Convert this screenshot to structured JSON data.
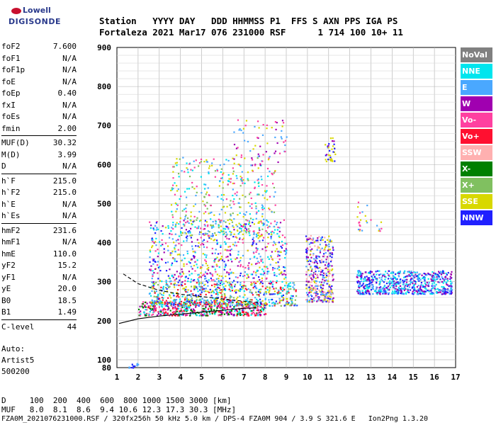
{
  "logo": {
    "line1": "Lowell",
    "line2": "DIGISONDE"
  },
  "header": {
    "labels": "Station   YYYY DAY   DDD HHMMSS P1  FFS S AXN PPS IGA PS",
    "values": "Fortaleza 2021 Mar17 076 231000 RSF      1 714 100 10+ 11"
  },
  "params": {
    "group1": [
      [
        "foF2",
        "7.600"
      ],
      [
        "foF1",
        "N/A"
      ],
      [
        "foF1p",
        "N/A"
      ],
      [
        "foE",
        "N/A"
      ],
      [
        "foEp",
        "0.40"
      ],
      [
        "fxI",
        "N/A"
      ],
      [
        "foEs",
        "N/A"
      ],
      [
        "fmin",
        "2.00"
      ]
    ],
    "group2": [
      [
        "MUF(D)",
        "30.32"
      ],
      [
        "M(D)",
        "3.99"
      ],
      [
        "D",
        "N/A"
      ]
    ],
    "group3": [
      [
        "h`F",
        "215.0"
      ],
      [
        "h`F2",
        "215.0"
      ],
      [
        "h`E",
        "N/A"
      ],
      [
        "h`Es",
        "N/A"
      ]
    ],
    "group4": [
      [
        "hmF2",
        "231.6"
      ],
      [
        "hmF1",
        "N/A"
      ],
      [
        "hmE",
        "110.0"
      ],
      [
        "yF2",
        "15.2"
      ],
      [
        "yF1",
        "N/A"
      ],
      [
        "yE",
        "20.0"
      ],
      [
        "B0",
        "18.5"
      ],
      [
        "B1",
        "1.49"
      ]
    ],
    "group5": [
      [
        "C-level",
        "44"
      ]
    ]
  },
  "auto": {
    "line1": "Auto:",
    "line2": "Artist5",
    "line3": "500200"
  },
  "legend": [
    {
      "label": "NoVal",
      "color": "#808080"
    },
    {
      "label": "NNE",
      "color": "#00e5ee"
    },
    {
      "label": "E",
      "color": "#4aa8ff"
    },
    {
      "label": "W",
      "color": "#a000b0"
    },
    {
      "label": "Vo-",
      "color": "#ff40a0"
    },
    {
      "label": "Vo+",
      "color": "#ff1030"
    },
    {
      "label": "SSW",
      "color": "#ffb0b0"
    },
    {
      "label": "X-",
      "color": "#008000"
    },
    {
      "label": "X+",
      "color": "#80c060"
    },
    {
      "label": "SSE",
      "color": "#d8d800"
    },
    {
      "label": "NNW",
      "color": "#2020ff"
    }
  ],
  "chart_data": {
    "type": "scatter",
    "title": "",
    "xlabel": "",
    "ylabel": "",
    "xlim": [
      1,
      17
    ],
    "ylim": [
      80,
      900
    ],
    "xticks": [
      "1",
      "2",
      "3",
      "4",
      "5",
      "6",
      "7",
      "8",
      "9",
      "10",
      "11",
      "12",
      "13",
      "14",
      "15",
      "16",
      "17"
    ],
    "yticks": [
      "100",
      "200",
      "300",
      "400",
      "500",
      "600",
      "700",
      "800",
      "900"
    ],
    "ytick_bottom": "80",
    "grid": true,
    "clusters": [
      {
        "x": [
          2.0,
          8.0
        ],
        "y": [
          215,
          250
        ],
        "colors": [
          "#ff1030",
          "#ff40a0",
          "#a000b0",
          "#00e5ee",
          "#008000"
        ],
        "n": 500
      },
      {
        "x": [
          2.5,
          9.5
        ],
        "y": [
          240,
          300
        ],
        "colors": [
          "#4aa8ff",
          "#00e5ee",
          "#ff1030",
          "#d8d800",
          "#2020ff",
          "#80c060"
        ],
        "n": 650
      },
      {
        "x": [
          2.5,
          9.0
        ],
        "y": [
          300,
          460
        ],
        "colors": [
          "#4aa8ff",
          "#d8d800",
          "#ff40a0",
          "#2020ff",
          "#a000b0",
          "#00e5ee"
        ],
        "n": 650
      },
      {
        "x": [
          3.5,
          8.5
        ],
        "y": [
          420,
          620
        ],
        "colors": [
          "#4aa8ff",
          "#d8d800",
          "#ff40a0",
          "#00e5ee",
          "#80c060"
        ],
        "n": 400
      },
      {
        "x": [
          6.5,
          9.0
        ],
        "y": [
          600,
          720
        ],
        "colors": [
          "#a000b0",
          "#ff40a0",
          "#4aa8ff",
          "#d8d800"
        ],
        "n": 70
      },
      {
        "x": [
          9.9,
          11.2
        ],
        "y": [
          250,
          420
        ],
        "colors": [
          "#2020ff",
          "#a000b0",
          "#ffb0b0",
          "#d8d800",
          "#4aa8ff"
        ],
        "n": 400
      },
      {
        "x": [
          10.8,
          11.3
        ],
        "y": [
          610,
          670
        ],
        "colors": [
          "#2020ff",
          "#a000b0",
          "#d8d800"
        ],
        "n": 35
      },
      {
        "x": [
          12.3,
          16.8
        ],
        "y": [
          270,
          330
        ],
        "colors": [
          "#2020ff",
          "#4aa8ff",
          "#a000b0",
          "#00e5ee"
        ],
        "n": 700
      },
      {
        "x": [
          12.3,
          13.5
        ],
        "y": [
          430,
          510
        ],
        "colors": [
          "#4aa8ff",
          "#d8d800",
          "#ff40a0"
        ],
        "n": 25
      },
      {
        "x": [
          1.5,
          2.0
        ],
        "y": [
          80,
          95
        ],
        "colors": [
          "#2020ff",
          "#4aa8ff"
        ],
        "n": 12
      }
    ],
    "trace_lower": [
      [
        1.1,
        193
      ],
      [
        2,
        205
      ],
      [
        3,
        212
      ],
      [
        4,
        217
      ],
      [
        5,
        222
      ],
      [
        6,
        227
      ],
      [
        7,
        232
      ],
      [
        7.6,
        233
      ]
    ],
    "trace_upper": [
      [
        1.3,
        320
      ],
      [
        2,
        295
      ],
      [
        3,
        278
      ],
      [
        4,
        268
      ],
      [
        5,
        262
      ],
      [
        6,
        256
      ],
      [
        7,
        250
      ],
      [
        7.8,
        246
      ]
    ]
  },
  "footer": {
    "line1": "D     100  200  400  600  800 1000 1500 3000 [km]",
    "line2": "MUF   8.0  8.1  8.6  9.4 10.6 12.3 17.3 30.3 [MHz]",
    "line3": "FZA0M_2021076231000.RSF / 320fx256h 50 kHz 5.0 km / DPS-4 FZA0M 904 / 3.9 S 321.6 E   Ion2Png 1.3.20"
  }
}
